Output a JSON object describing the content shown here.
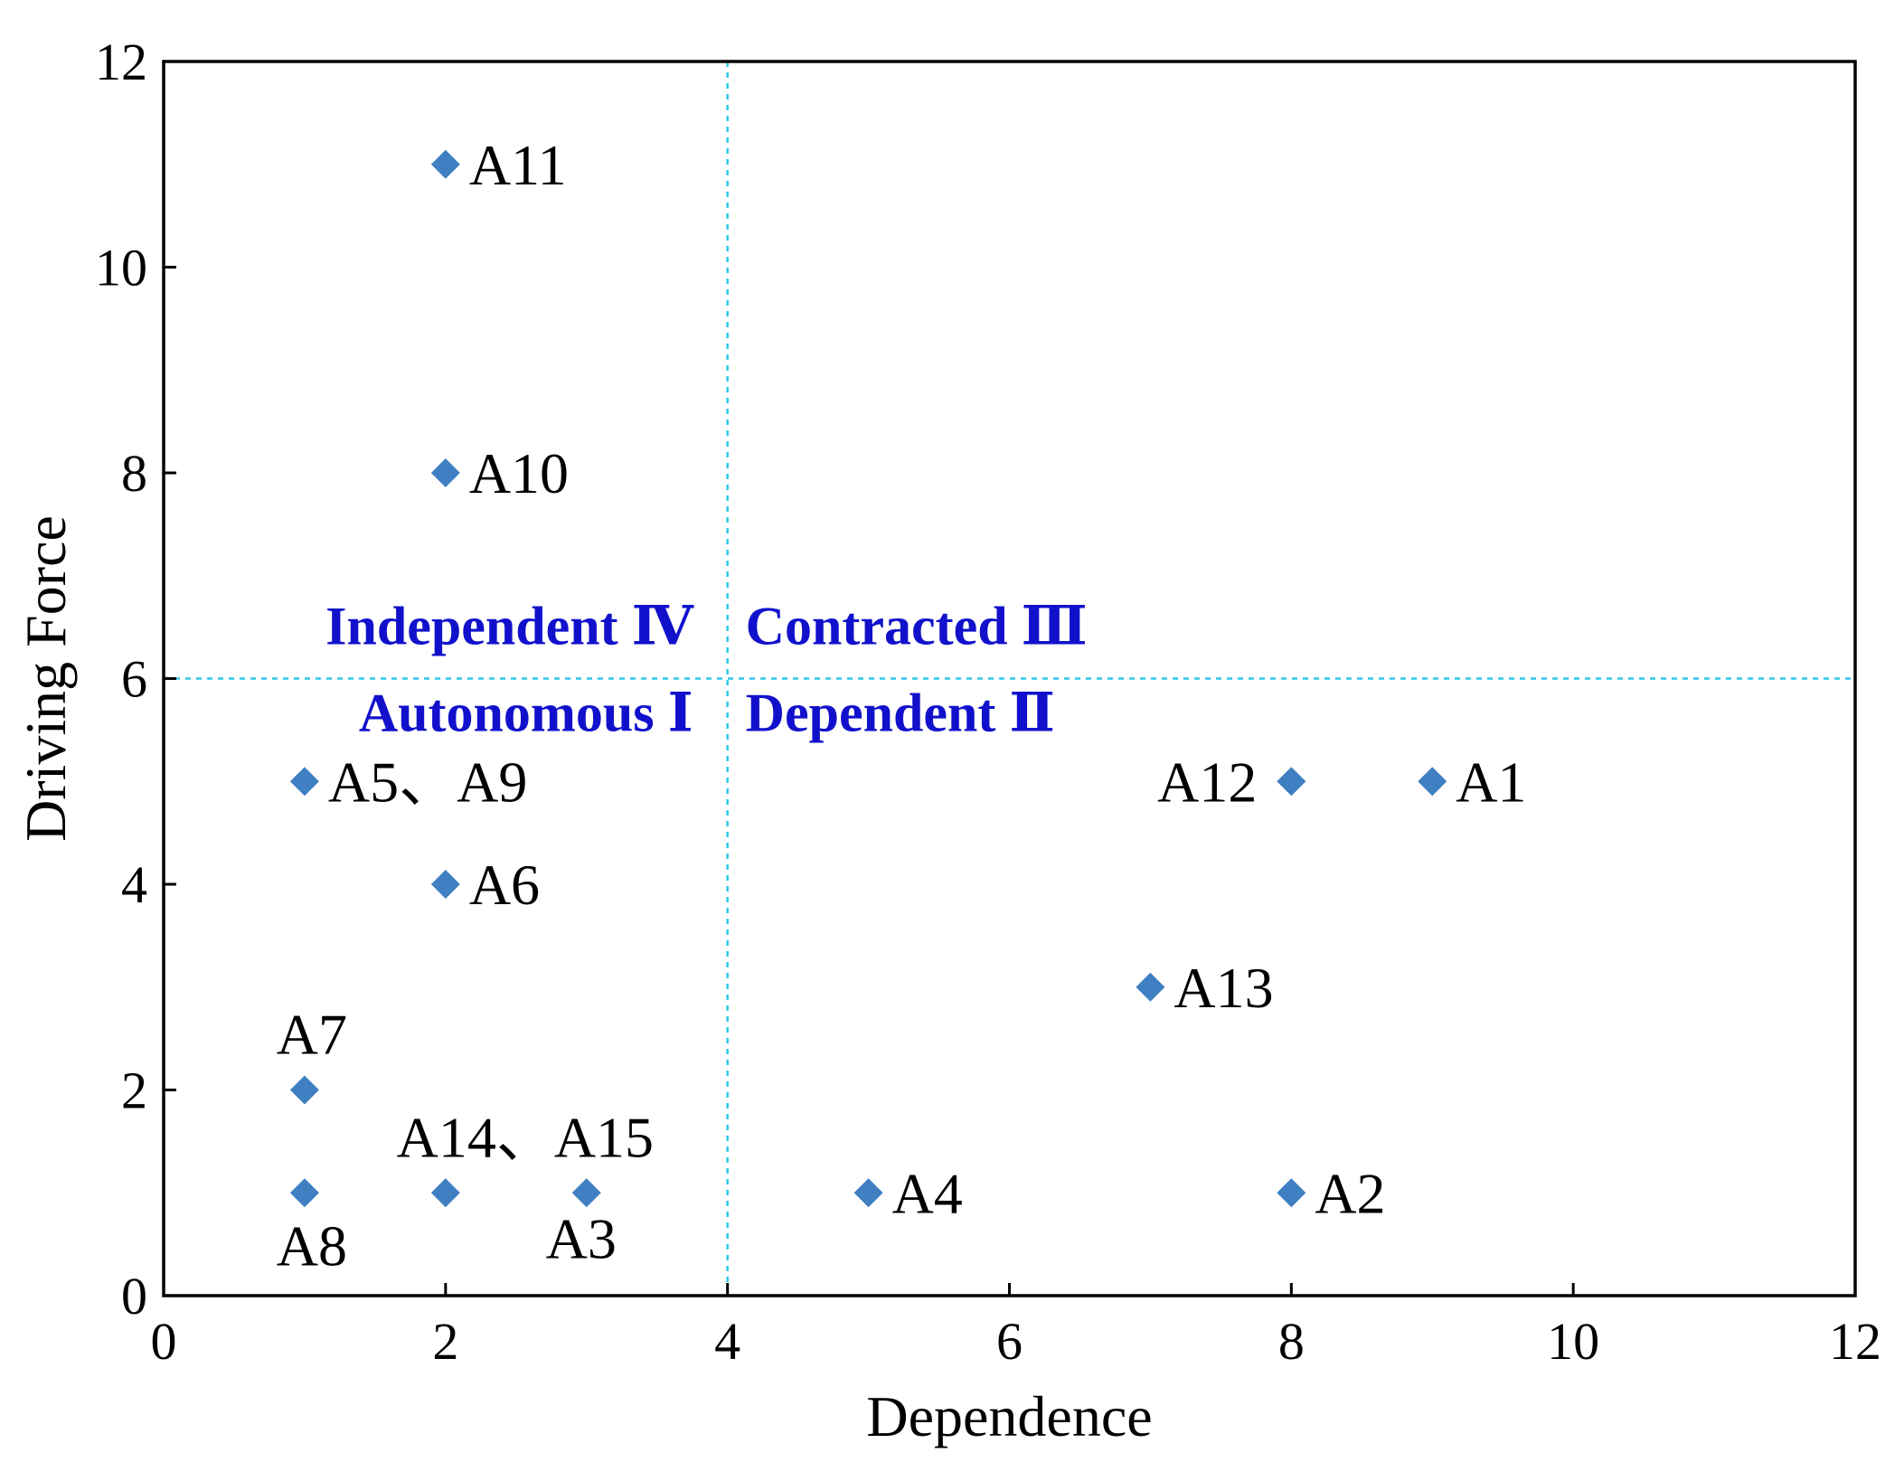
{
  "chart_data": {
    "type": "scatter",
    "xlabel": "Dependence",
    "ylabel": "Driving Force",
    "xlim": [
      0,
      12
    ],
    "ylim": [
      0,
      12
    ],
    "xticks": [
      0,
      2,
      4,
      6,
      8,
      10,
      12
    ],
    "yticks": [
      0,
      2,
      4,
      6,
      8,
      10,
      12
    ],
    "grid": false,
    "marker": "diamond",
    "marker_color": "#3f7fc2",
    "divider_color": "#2ec8e8",
    "dividers": {
      "x": 4,
      "y": 6
    },
    "quadrants": [
      {
        "name": "Independent Ⅳ",
        "position": "upper-left"
      },
      {
        "name": "Contracted Ⅲ",
        "position": "upper-right"
      },
      {
        "name": "Autonomous Ⅰ",
        "position": "lower-left"
      },
      {
        "name": "Dependent Ⅱ",
        "position": "lower-right"
      }
    ],
    "points": [
      {
        "x": 2,
        "y": 11
      },
      {
        "x": 2,
        "y": 8
      },
      {
        "x": 1,
        "y": 5
      },
      {
        "x": 2,
        "y": 4
      },
      {
        "x": 1,
        "y": 2
      },
      {
        "x": 1,
        "y": 1
      },
      {
        "x": 2,
        "y": 1
      },
      {
        "x": 3,
        "y": 1
      },
      {
        "x": 5,
        "y": 1
      },
      {
        "x": 8,
        "y": 1
      },
      {
        "x": 7,
        "y": 3
      },
      {
        "x": 8,
        "y": 5
      },
      {
        "x": 9,
        "y": 5
      }
    ],
    "annotations": [
      {
        "text": "A11",
        "x": 2,
        "y": 11,
        "placement": "right"
      },
      {
        "text": "A10",
        "x": 2,
        "y": 8,
        "placement": "right"
      },
      {
        "text": "A5、A9",
        "x": 1,
        "y": 5,
        "placement": "right"
      },
      {
        "text": "A6",
        "x": 2,
        "y": 4,
        "placement": "right"
      },
      {
        "text": "A7",
        "x": 1,
        "y": 2,
        "placement": "above"
      },
      {
        "text": "A8",
        "x": 1,
        "y": 1,
        "placement": "below"
      },
      {
        "text": "A14、A15",
        "x": 2,
        "y": 1,
        "placement": "above"
      },
      {
        "text": "A3",
        "x": 3,
        "y": 1,
        "placement": "below"
      },
      {
        "text": "A4",
        "x": 5,
        "y": 1,
        "placement": "right"
      },
      {
        "text": "A2",
        "x": 8,
        "y": 1,
        "placement": "right"
      },
      {
        "text": "A13",
        "x": 7,
        "y": 3,
        "placement": "right"
      },
      {
        "text": "A12",
        "x": 8,
        "y": 5,
        "placement": "left"
      },
      {
        "text": "A1",
        "x": 9,
        "y": 5,
        "placement": "right"
      }
    ]
  }
}
